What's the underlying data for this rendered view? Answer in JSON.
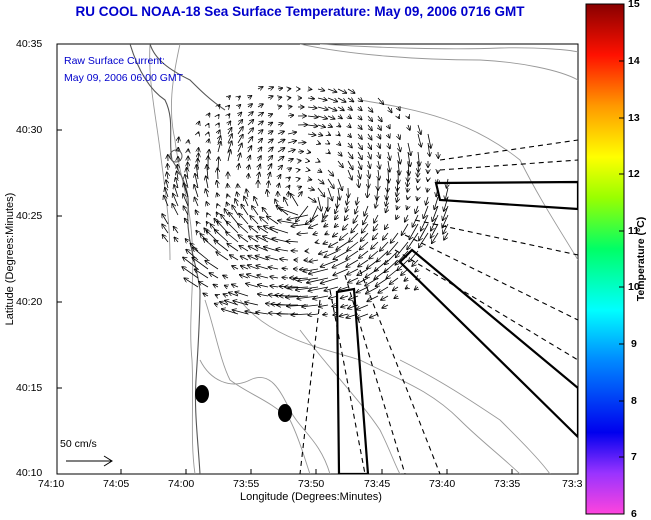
{
  "title": "RU COOL  NOAA-18  Sea Surface Temperature:  May 09, 2006 0716 GMT",
  "annotation": {
    "line1": "Raw Surface Current:",
    "line2": "May 09, 2006 06:00 GMT"
  },
  "scale_label": "50 cm/s",
  "y_axis": {
    "label": "Latitude (Degrees:Minutes)",
    "ticks": [
      "40:35",
      "40:30",
      "40:25",
      "40:20",
      "40:15",
      "40:10"
    ]
  },
  "x_axis": {
    "label": "Longitude (Degrees:Minutes)",
    "ticks": [
      "74:10",
      "74:05",
      "74:00",
      "73:55",
      "73:50",
      "73:45",
      "73:40",
      "73:35",
      "73:3"
    ]
  },
  "colorbar": {
    "label": "Temperature (°C)",
    "ticks": [
      "15",
      "14",
      "13",
      "12",
      "11",
      "10",
      "9",
      "8",
      "7",
      "6"
    ],
    "min": 6,
    "max": 15,
    "colors": [
      "#ff33cc",
      "#9933ff",
      "#0000ff",
      "#0099ff",
      "#00ffff",
      "#00ff66",
      "#99ff00",
      "#ffff00",
      "#ff9900",
      "#ff0000",
      "#990000"
    ]
  },
  "map": {
    "radar_sites": 2,
    "vector_field": "surface current vectors"
  }
}
